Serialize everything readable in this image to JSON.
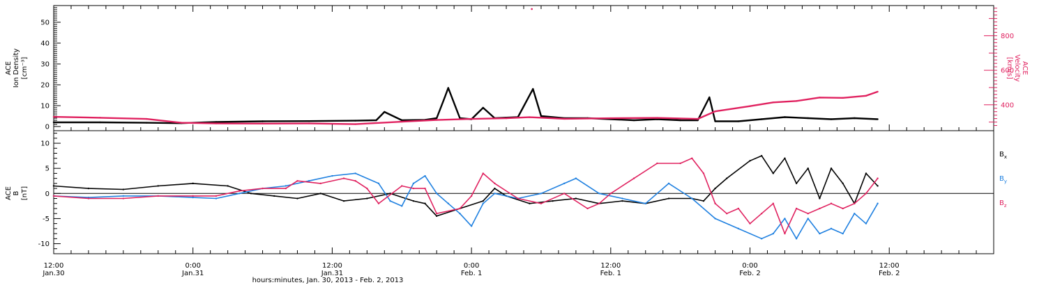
{
  "colors": {
    "black": "#000000",
    "red": "#e0215f",
    "blue": "#1f80e0"
  },
  "x_axis": {
    "label": "hours:minutes, Jan. 30, 2013 - Feb. 2, 2013",
    "ticks": [
      {
        "hour": 0,
        "line1": "12:00",
        "line2": "Jan.30"
      },
      {
        "hour": 12,
        "line1": "0:00",
        "line2": "Jan.31"
      },
      {
        "hour": 24,
        "line1": "12:00",
        "line2": "Jan.31"
      },
      {
        "hour": 36,
        "line1": "0:00",
        "line2": "Feb. 1"
      },
      {
        "hour": 48,
        "line1": "12:00",
        "line2": "Feb. 1"
      },
      {
        "hour": 60,
        "line1": "0:00",
        "line2": "Feb. 2"
      },
      {
        "hour": 72,
        "line1": "12:00",
        "line2": "Feb. 2"
      }
    ],
    "range_hours": [
      0,
      81
    ],
    "minor_tick_hours": 1.5
  },
  "chart_data": [
    {
      "type": "scatter",
      "panel": "top",
      "ylabel_left": [
        "ACE",
        "Ion Density",
        "[cm⁻³]"
      ],
      "ylabel_right": [
        "ACE",
        "Velocity",
        "[km/s]"
      ],
      "ylim_left": [
        -2,
        58
      ],
      "ylim_right": [
        250,
        975
      ],
      "ticks_left": [
        0,
        10,
        20,
        30,
        40,
        50
      ],
      "ticks_right": [
        400,
        600,
        800
      ],
      "series": [
        {
          "axis": "left",
          "color": "black",
          "points": [
            [
              0,
              2
            ],
            [
              4,
              2
            ],
            [
              8,
              1.8
            ],
            [
              11,
              1.6
            ],
            [
              14,
              2.2
            ],
            [
              18,
              2.5
            ],
            [
              22,
              2.6
            ],
            [
              26,
              2.8
            ],
            [
              27.8,
              3
            ],
            [
              28.5,
              7
            ],
            [
              30,
              3
            ],
            [
              32,
              3.2
            ],
            [
              33,
              4
            ],
            [
              33.7,
              14
            ],
            [
              34,
              18.5
            ],
            [
              35,
              4
            ],
            [
              36,
              3.5
            ],
            [
              37,
              9
            ],
            [
              38,
              4
            ],
            [
              40,
              4.5
            ],
            [
              41.3,
              18
            ],
            [
              42,
              5
            ],
            [
              44,
              4
            ],
            [
              46,
              4
            ],
            [
              48,
              3.5
            ],
            [
              50,
              3
            ],
            [
              52,
              3.5
            ],
            [
              54,
              3
            ],
            [
              55.5,
              3
            ],
            [
              56.5,
              14
            ],
            [
              57,
              2.5
            ],
            [
              59,
              2.5
            ],
            [
              61,
              3.5
            ],
            [
              63,
              4.5
            ],
            [
              65,
              4
            ],
            [
              67,
              3.5
            ],
            [
              69,
              4
            ],
            [
              71,
              3.5
            ]
          ]
        },
        {
          "axis": "right",
          "color": "red",
          "points": [
            [
              0,
              330
            ],
            [
              4,
              325
            ],
            [
              8,
              318
            ],
            [
              11,
              296
            ],
            [
              14,
              292
            ],
            [
              18,
              291
            ],
            [
              22,
              292
            ],
            [
              26,
              288
            ],
            [
              30,
              302
            ],
            [
              33,
              312
            ],
            [
              36,
              318
            ],
            [
              39,
              322
            ],
            [
              41,
              328
            ],
            [
              44,
              319
            ],
            [
              48,
              322
            ],
            [
              52,
              324
            ],
            [
              55.5,
              318
            ],
            [
              57,
              362
            ],
            [
              60,
              392
            ],
            [
              62,
              414
            ],
            [
              64,
              422
            ],
            [
              66,
              442
            ],
            [
              68,
              440
            ],
            [
              70,
              452
            ],
            [
              71,
              476
            ]
          ]
        }
      ],
      "annotations": [
        {
          "hour": 41.2,
          "value": 955,
          "axis": "right",
          "color": "red"
        }
      ]
    },
    {
      "type": "line",
      "panel": "bottom",
      "ylabel": [
        "ACE",
        "B",
        "[nT]"
      ],
      "ylim": [
        -12,
        12.5
      ],
      "ticks": [
        -10,
        -5,
        0,
        5,
        10
      ],
      "series": [
        {
          "name": "Bx",
          "color": "black",
          "points": [
            [
              0,
              1.5
            ],
            [
              3,
              1
            ],
            [
              6,
              0.8
            ],
            [
              9,
              1.5
            ],
            [
              12,
              2
            ],
            [
              15,
              1.5
            ],
            [
              17,
              0
            ],
            [
              19,
              -0.5
            ],
            [
              21,
              -1
            ],
            [
              23,
              0
            ],
            [
              25,
              -1.5
            ],
            [
              27,
              -1
            ],
            [
              29,
              0
            ],
            [
              31,
              -1.5
            ],
            [
              32,
              -2
            ],
            [
              33,
              -4.5
            ],
            [
              35,
              -3
            ],
            [
              37,
              -1.5
            ],
            [
              38,
              1
            ],
            [
              39,
              -0.5
            ],
            [
              41,
              -2
            ],
            [
              43,
              -1.5
            ],
            [
              45,
              -1
            ],
            [
              47,
              -2
            ],
            [
              49,
              -1.5
            ],
            [
              51,
              -2
            ],
            [
              53,
              -1
            ],
            [
              55,
              -1
            ],
            [
              56,
              -1.5
            ],
            [
              57,
              1
            ],
            [
              58,
              3
            ],
            [
              60,
              6.5
            ],
            [
              61,
              7.5
            ],
            [
              62,
              4
            ],
            [
              63,
              7
            ],
            [
              64,
              2
            ],
            [
              65,
              5
            ],
            [
              66,
              -1
            ],
            [
              67,
              5
            ],
            [
              68,
              2
            ],
            [
              69,
              -2
            ],
            [
              70,
              4
            ],
            [
              71,
              1.5
            ]
          ]
        },
        {
          "name": "By",
          "color": "blue",
          "points": [
            [
              0,
              -0.5
            ],
            [
              3,
              -0.8
            ],
            [
              6,
              -0.5
            ],
            [
              9,
              -0.5
            ],
            [
              12,
              -0.8
            ],
            [
              14,
              -1
            ],
            [
              16,
              0
            ],
            [
              18,
              1
            ],
            [
              20,
              1.5
            ],
            [
              22,
              2.5
            ],
            [
              24,
              3.5
            ],
            [
              26,
              4
            ],
            [
              28,
              2
            ],
            [
              29,
              -1.5
            ],
            [
              30,
              -2.5
            ],
            [
              31,
              2
            ],
            [
              32,
              3.5
            ],
            [
              33,
              0
            ],
            [
              34,
              -2
            ],
            [
              35,
              -4
            ],
            [
              36,
              -6.5
            ],
            [
              37,
              -2
            ],
            [
              38,
              0
            ],
            [
              40,
              -1
            ],
            [
              42,
              0
            ],
            [
              44,
              2
            ],
            [
              45,
              3
            ],
            [
              47,
              0
            ],
            [
              49,
              -1
            ],
            [
              51,
              -2
            ],
            [
              53,
              2
            ],
            [
              55,
              -1
            ],
            [
              57,
              -5
            ],
            [
              59,
              -7
            ],
            [
              61,
              -9
            ],
            [
              62,
              -8
            ],
            [
              63,
              -5
            ],
            [
              64,
              -9
            ],
            [
              65,
              -5
            ],
            [
              66,
              -8
            ],
            [
              67,
              -7
            ],
            [
              68,
              -8
            ],
            [
              69,
              -4
            ],
            [
              70,
              -6
            ],
            [
              71,
              -2
            ]
          ]
        },
        {
          "name": "Bz",
          "color": "red",
          "points": [
            [
              0,
              -0.5
            ],
            [
              3,
              -1
            ],
            [
              6,
              -1
            ],
            [
              9,
              -0.5
            ],
            [
              12,
              -0.5
            ],
            [
              14,
              -0.5
            ],
            [
              16,
              0.5
            ],
            [
              18,
              1
            ],
            [
              20,
              1
            ],
            [
              21,
              2.5
            ],
            [
              23,
              2
            ],
            [
              25,
              3
            ],
            [
              26,
              2.5
            ],
            [
              27,
              1
            ],
            [
              28,
              -2
            ],
            [
              30,
              1.5
            ],
            [
              31,
              1
            ],
            [
              32,
              1
            ],
            [
              33,
              -4
            ],
            [
              35,
              -3
            ],
            [
              36,
              -0.5
            ],
            [
              37,
              4
            ],
            [
              38,
              2
            ],
            [
              40,
              -1
            ],
            [
              42,
              -2
            ],
            [
              44,
              0
            ],
            [
              46,
              -3
            ],
            [
              47,
              -2
            ],
            [
              48,
              0
            ],
            [
              50,
              3
            ],
            [
              52,
              6
            ],
            [
              54,
              6
            ],
            [
              55,
              7
            ],
            [
              56,
              4
            ],
            [
              57,
              -2
            ],
            [
              58,
              -4
            ],
            [
              59,
              -3
            ],
            [
              60,
              -6
            ],
            [
              61,
              -4
            ],
            [
              62,
              -2
            ],
            [
              63,
              -8
            ],
            [
              64,
              -3
            ],
            [
              65,
              -4
            ],
            [
              66,
              -3
            ],
            [
              67,
              -2
            ],
            [
              68,
              -3
            ],
            [
              69,
              -2
            ],
            [
              70,
              0
            ],
            [
              71,
              3
            ]
          ]
        }
      ],
      "legend": [
        {
          "base": "B",
          "sub": "x",
          "color": "black"
        },
        {
          "base": "B",
          "sub": "y",
          "color": "blue"
        },
        {
          "base": "B",
          "sub": "z",
          "color": "red"
        }
      ]
    }
  ]
}
